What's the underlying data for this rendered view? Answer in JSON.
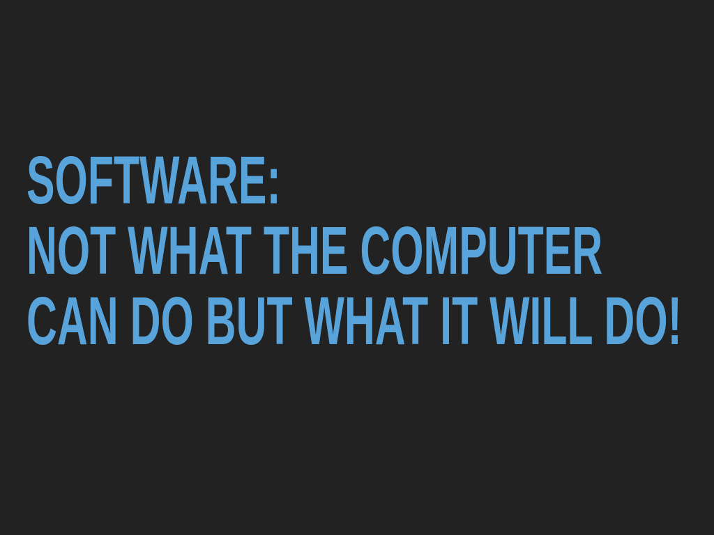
{
  "slide": {
    "lines": [
      "SOFTWARE:",
      "NOT WHAT THE COMPUTER",
      "CAN DO BUT WHAT IT WILL DO!"
    ]
  }
}
